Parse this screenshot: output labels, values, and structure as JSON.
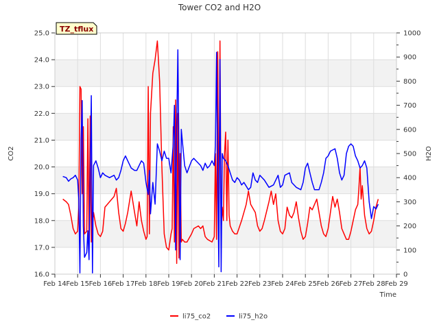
{
  "chart_data": {
    "type": "line",
    "title": "Tower CO2 and H2O",
    "xlabel": "Time",
    "ylabel_left": "CO2",
    "ylabel_right": "H2O",
    "site_badge": "TZ_tflux",
    "x_range": [
      14,
      29
    ],
    "x_ticks": [
      "Feb 14",
      "Feb 15",
      "Feb 16",
      "Feb 17",
      "Feb 18",
      "Feb 19",
      "Feb 20",
      "Feb 21",
      "Feb 22",
      "Feb 23",
      "Feb 24",
      "Feb 25",
      "Feb 26",
      "Feb 27",
      "Feb 28",
      "Feb 29"
    ],
    "ylim_left": [
      16.0,
      25.0
    ],
    "y_ticks_left": [
      "16.0",
      "17.0",
      "18.0",
      "19.0",
      "20.0",
      "21.0",
      "22.0",
      "23.0",
      "24.0",
      "25.0"
    ],
    "ylim_right": [
      0,
      1000
    ],
    "y_ticks_right": [
      "0",
      "100",
      "200",
      "300",
      "400",
      "500",
      "600",
      "700",
      "800",
      "900",
      "1000"
    ],
    "grid": true,
    "legend_position": "bottom-center",
    "colors": {
      "co2": "#ff0000",
      "h2o": "#0000ff",
      "band": "#f2f2f2",
      "badge_bg": "#ffffcc"
    },
    "series": [
      {
        "name": "li75_co2",
        "axis": "left",
        "points": [
          [
            14.35,
            18.8
          ],
          [
            14.5,
            18.7
          ],
          [
            14.6,
            18.6
          ],
          [
            14.7,
            18.2
          ],
          [
            14.8,
            17.7
          ],
          [
            14.9,
            17.5
          ],
          [
            15.0,
            17.6
          ],
          [
            15.05,
            18.5
          ],
          [
            15.1,
            23.0
          ],
          [
            15.15,
            22.9
          ],
          [
            15.2,
            19.0
          ],
          [
            15.25,
            21.5
          ],
          [
            15.3,
            17.5
          ],
          [
            15.4,
            17.6
          ],
          [
            15.45,
            21.8
          ],
          [
            15.5,
            17.3
          ],
          [
            15.55,
            21.9
          ],
          [
            15.6,
            17.2
          ],
          [
            15.7,
            18.3
          ],
          [
            15.8,
            17.8
          ],
          [
            15.9,
            17.5
          ],
          [
            16.0,
            17.4
          ],
          [
            16.1,
            17.6
          ],
          [
            16.2,
            18.5
          ],
          [
            16.4,
            18.7
          ],
          [
            16.6,
            18.9
          ],
          [
            16.7,
            19.2
          ],
          [
            16.8,
            18.3
          ],
          [
            16.9,
            17.7
          ],
          [
            17.0,
            17.6
          ],
          [
            17.1,
            17.9
          ],
          [
            17.2,
            18.3
          ],
          [
            17.35,
            19.1
          ],
          [
            17.5,
            18.3
          ],
          [
            17.6,
            17.8
          ],
          [
            17.7,
            18.7
          ],
          [
            17.8,
            18.0
          ],
          [
            17.9,
            17.6
          ],
          [
            18.0,
            17.3
          ],
          [
            18.05,
            17.4
          ],
          [
            18.1,
            23.0
          ],
          [
            18.15,
            17.5
          ],
          [
            18.2,
            22.0
          ],
          [
            18.3,
            23.5
          ],
          [
            18.4,
            24.0
          ],
          [
            18.5,
            24.7
          ],
          [
            18.6,
            23.2
          ],
          [
            18.7,
            20.0
          ],
          [
            18.8,
            17.5
          ],
          [
            18.9,
            17.0
          ],
          [
            19.0,
            16.9
          ],
          [
            19.1,
            17.5
          ],
          [
            19.15,
            17.7
          ],
          [
            19.2,
            21.5
          ],
          [
            19.25,
            17.2
          ],
          [
            19.3,
            22.5
          ],
          [
            19.35,
            16.4
          ],
          [
            19.4,
            22.0
          ],
          [
            19.45,
            16.6
          ],
          [
            19.5,
            20.5
          ],
          [
            19.55,
            17.2
          ],
          [
            19.6,
            17.3
          ],
          [
            19.7,
            17.2
          ],
          [
            19.8,
            17.2
          ],
          [
            20.0,
            17.5
          ],
          [
            20.1,
            17.7
          ],
          [
            20.3,
            17.8
          ],
          [
            20.4,
            17.7
          ],
          [
            20.5,
            17.8
          ],
          [
            20.6,
            17.4
          ],
          [
            20.7,
            17.3
          ],
          [
            20.9,
            17.2
          ],
          [
            21.0,
            17.4
          ],
          [
            21.05,
            20.5
          ],
          [
            21.1,
            17.3
          ],
          [
            21.15,
            24.3
          ],
          [
            21.2,
            17.4
          ],
          [
            21.25,
            24.7
          ],
          [
            21.3,
            17.6
          ],
          [
            21.35,
            18.5
          ],
          [
            21.4,
            18.0
          ],
          [
            21.45,
            20.5
          ],
          [
            21.5,
            21.3
          ],
          [
            21.55,
            18.0
          ],
          [
            21.6,
            21.0
          ],
          [
            21.65,
            18.2
          ],
          [
            21.7,
            17.8
          ],
          [
            21.8,
            17.6
          ],
          [
            21.9,
            17.5
          ],
          [
            22.0,
            17.5
          ],
          [
            22.2,
            18.0
          ],
          [
            22.4,
            18.6
          ],
          [
            22.5,
            19.1
          ],
          [
            22.6,
            18.6
          ],
          [
            22.8,
            18.3
          ],
          [
            22.9,
            17.8
          ],
          [
            23.0,
            17.6
          ],
          [
            23.1,
            17.7
          ],
          [
            23.2,
            18.0
          ],
          [
            23.4,
            18.7
          ],
          [
            23.5,
            19.1
          ],
          [
            23.6,
            18.6
          ],
          [
            23.7,
            19.0
          ],
          [
            23.8,
            18.0
          ],
          [
            23.9,
            17.6
          ],
          [
            24.0,
            17.5
          ],
          [
            24.1,
            17.7
          ],
          [
            24.2,
            18.5
          ],
          [
            24.3,
            18.2
          ],
          [
            24.4,
            18.1
          ],
          [
            24.5,
            18.3
          ],
          [
            24.6,
            18.7
          ],
          [
            24.7,
            18.1
          ],
          [
            24.8,
            17.6
          ],
          [
            24.9,
            17.3
          ],
          [
            25.0,
            17.4
          ],
          [
            25.1,
            17.9
          ],
          [
            25.2,
            18.5
          ],
          [
            25.3,
            18.4
          ],
          [
            25.4,
            18.6
          ],
          [
            25.5,
            18.8
          ],
          [
            25.6,
            18.3
          ],
          [
            25.7,
            17.8
          ],
          [
            25.8,
            17.5
          ],
          [
            25.9,
            17.4
          ],
          [
            26.0,
            17.7
          ],
          [
            26.1,
            18.3
          ],
          [
            26.2,
            18.9
          ],
          [
            26.3,
            18.5
          ],
          [
            26.4,
            18.8
          ],
          [
            26.5,
            18.3
          ],
          [
            26.6,
            17.7
          ],
          [
            26.7,
            17.5
          ],
          [
            26.8,
            17.3
          ],
          [
            26.9,
            17.3
          ],
          [
            27.0,
            17.6
          ],
          [
            27.1,
            18.0
          ],
          [
            27.2,
            18.4
          ],
          [
            27.3,
            18.6
          ],
          [
            27.35,
            19.2
          ],
          [
            27.4,
            20.0
          ],
          [
            27.45,
            18.8
          ],
          [
            27.5,
            19.3
          ],
          [
            27.6,
            18.2
          ],
          [
            27.7,
            17.7
          ],
          [
            27.8,
            17.5
          ],
          [
            27.9,
            17.6
          ],
          [
            28.0,
            18.0
          ],
          [
            28.1,
            18.5
          ],
          [
            28.2,
            18.8
          ]
        ]
      },
      {
        "name": "li75_h2o",
        "axis": "right",
        "points": [
          [
            14.35,
            405
          ],
          [
            14.5,
            400
          ],
          [
            14.6,
            385
          ],
          [
            14.7,
            395
          ],
          [
            14.8,
            400
          ],
          [
            14.9,
            410
          ],
          [
            15.0,
            390
          ],
          [
            15.05,
            310
          ],
          [
            15.1,
            5
          ],
          [
            15.15,
            560
          ],
          [
            15.2,
            720
          ],
          [
            15.25,
            200
          ],
          [
            15.3,
            70
          ],
          [
            15.4,
            90
          ],
          [
            15.45,
            180
          ],
          [
            15.5,
            60
          ],
          [
            15.6,
            740
          ],
          [
            15.65,
            5
          ],
          [
            15.7,
            450
          ],
          [
            15.8,
            470
          ],
          [
            15.9,
            440
          ],
          [
            16.0,
            400
          ],
          [
            16.1,
            420
          ],
          [
            16.2,
            410
          ],
          [
            16.4,
            400
          ],
          [
            16.6,
            410
          ],
          [
            16.7,
            390
          ],
          [
            16.8,
            400
          ],
          [
            16.9,
            430
          ],
          [
            17.0,
            470
          ],
          [
            17.1,
            490
          ],
          [
            17.2,
            470
          ],
          [
            17.35,
            440
          ],
          [
            17.5,
            430
          ],
          [
            17.6,
            430
          ],
          [
            17.7,
            450
          ],
          [
            17.8,
            470
          ],
          [
            17.9,
            460
          ],
          [
            18.0,
            380
          ],
          [
            18.1,
            330
          ],
          [
            18.15,
            430
          ],
          [
            18.2,
            250
          ],
          [
            18.3,
            380
          ],
          [
            18.4,
            290
          ],
          [
            18.5,
            540
          ],
          [
            18.6,
            510
          ],
          [
            18.7,
            470
          ],
          [
            18.8,
            510
          ],
          [
            18.9,
            480
          ],
          [
            19.0,
            480
          ],
          [
            19.1,
            420
          ],
          [
            19.2,
            540
          ],
          [
            19.25,
            700
          ],
          [
            19.3,
            100
          ],
          [
            19.35,
            600
          ],
          [
            19.4,
            930
          ],
          [
            19.45,
            500
          ],
          [
            19.5,
            60
          ],
          [
            19.55,
            600
          ],
          [
            19.6,
            550
          ],
          [
            19.7,
            450
          ],
          [
            19.8,
            420
          ],
          [
            20.0,
            470
          ],
          [
            20.1,
            480
          ],
          [
            20.2,
            470
          ],
          [
            20.3,
            460
          ],
          [
            20.4,
            450
          ],
          [
            20.5,
            430
          ],
          [
            20.6,
            460
          ],
          [
            20.7,
            440
          ],
          [
            20.8,
            450
          ],
          [
            20.9,
            470
          ],
          [
            21.0,
            450
          ],
          [
            21.05,
            530
          ],
          [
            21.1,
            920
          ],
          [
            21.15,
            400
          ],
          [
            21.2,
            30
          ],
          [
            21.25,
            890
          ],
          [
            21.3,
            10
          ],
          [
            21.35,
            500
          ],
          [
            21.4,
            480
          ],
          [
            21.5,
            470
          ],
          [
            21.6,
            450
          ],
          [
            21.7,
            420
          ],
          [
            21.8,
            390
          ],
          [
            21.9,
            380
          ],
          [
            22.0,
            400
          ],
          [
            22.1,
            390
          ],
          [
            22.2,
            370
          ],
          [
            22.3,
            380
          ],
          [
            22.5,
            350
          ],
          [
            22.6,
            360
          ],
          [
            22.7,
            420
          ],
          [
            22.8,
            390
          ],
          [
            22.9,
            380
          ],
          [
            23.0,
            410
          ],
          [
            23.2,
            390
          ],
          [
            23.4,
            360
          ],
          [
            23.6,
            370
          ],
          [
            23.8,
            410
          ],
          [
            23.9,
            360
          ],
          [
            24.0,
            370
          ],
          [
            24.1,
            410
          ],
          [
            24.3,
            420
          ],
          [
            24.4,
            380
          ],
          [
            24.6,
            360
          ],
          [
            24.8,
            350
          ],
          [
            24.9,
            380
          ],
          [
            25.0,
            440
          ],
          [
            25.1,
            460
          ],
          [
            25.2,
            420
          ],
          [
            25.3,
            380
          ],
          [
            25.4,
            350
          ],
          [
            25.6,
            350
          ],
          [
            25.7,
            380
          ],
          [
            25.8,
            420
          ],
          [
            25.9,
            480
          ],
          [
            26.0,
            490
          ],
          [
            26.1,
            510
          ],
          [
            26.3,
            520
          ],
          [
            26.4,
            480
          ],
          [
            26.5,
            420
          ],
          [
            26.6,
            390
          ],
          [
            26.7,
            410
          ],
          [
            26.8,
            500
          ],
          [
            26.9,
            530
          ],
          [
            27.0,
            540
          ],
          [
            27.1,
            530
          ],
          [
            27.2,
            490
          ],
          [
            27.3,
            470
          ],
          [
            27.4,
            440
          ],
          [
            27.5,
            450
          ],
          [
            27.6,
            470
          ],
          [
            27.7,
            440
          ],
          [
            27.8,
            300
          ],
          [
            27.9,
            230
          ],
          [
            28.0,
            280
          ],
          [
            28.1,
            270
          ],
          [
            28.2,
            290
          ]
        ]
      }
    ]
  }
}
